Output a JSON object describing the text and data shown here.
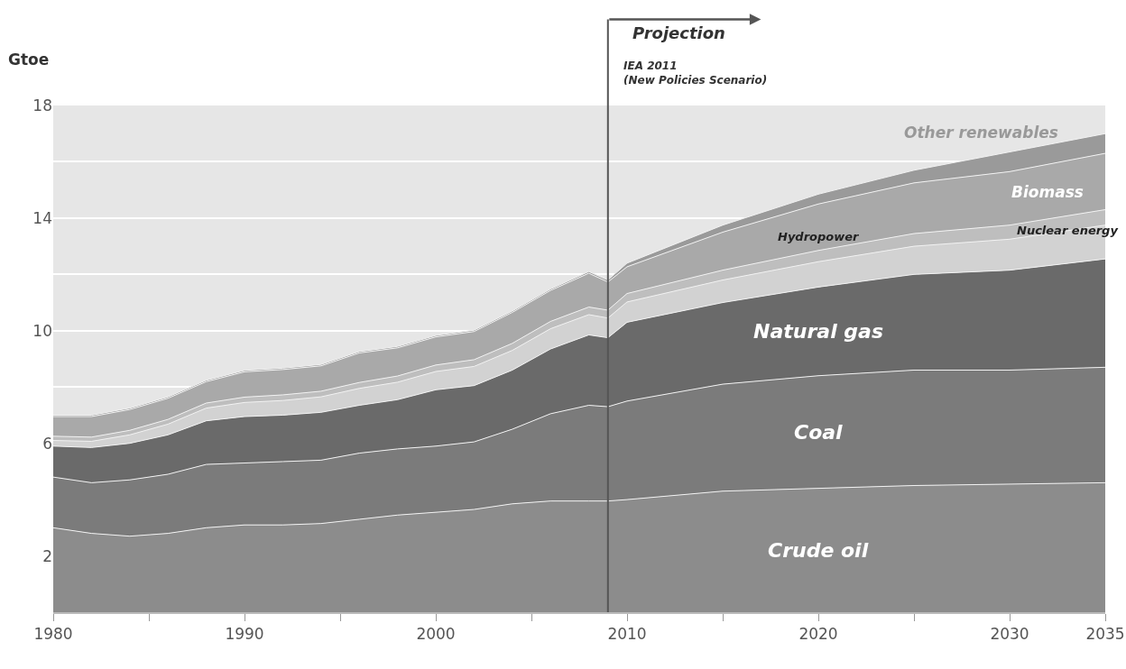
{
  "chart_data": {
    "type": "area",
    "stacked": true,
    "ylabel": "Gtoe",
    "x": [
      1980,
      1982,
      1984,
      1986,
      1988,
      1990,
      1992,
      1994,
      1996,
      1998,
      2000,
      2002,
      2004,
      2006,
      2008,
      2009,
      2010,
      2015,
      2020,
      2025,
      2030,
      2035
    ],
    "series": [
      {
        "name": "Crude oil",
        "color": "#8c8c8c",
        "values": [
          3.0,
          2.8,
          2.7,
          2.8,
          3.0,
          3.1,
          3.1,
          3.15,
          3.3,
          3.45,
          3.55,
          3.65,
          3.85,
          3.95,
          3.95,
          3.95,
          4.0,
          4.3,
          4.4,
          4.5,
          4.55,
          4.6
        ]
      },
      {
        "name": "Coal",
        "color": "#7b7b7b",
        "values": [
          1.8,
          1.8,
          2.0,
          2.1,
          2.25,
          2.2,
          2.25,
          2.25,
          2.35,
          2.35,
          2.35,
          2.4,
          2.65,
          3.1,
          3.4,
          3.35,
          3.5,
          3.8,
          4.0,
          4.1,
          4.05,
          4.1
        ]
      },
      {
        "name": "Natural gas",
        "color": "#6a6a6a",
        "values": [
          1.1,
          1.25,
          1.3,
          1.4,
          1.55,
          1.65,
          1.65,
          1.7,
          1.7,
          1.75,
          2.0,
          2.0,
          2.1,
          2.3,
          2.5,
          2.45,
          2.8,
          2.9,
          3.15,
          3.4,
          3.55,
          3.85
        ]
      },
      {
        "name": "Nuclear energy",
        "color": "#d2d2d2",
        "values": [
          0.2,
          0.22,
          0.3,
          0.38,
          0.45,
          0.5,
          0.52,
          0.55,
          0.6,
          0.62,
          0.65,
          0.68,
          0.7,
          0.72,
          0.72,
          0.7,
          0.72,
          0.8,
          0.9,
          1.0,
          1.1,
          1.2
        ]
      },
      {
        "name": "Hydropower",
        "color": "#bebebe",
        "values": [
          0.15,
          0.15,
          0.16,
          0.17,
          0.18,
          0.19,
          0.2,
          0.2,
          0.21,
          0.22,
          0.23,
          0.24,
          0.25,
          0.26,
          0.27,
          0.28,
          0.3,
          0.35,
          0.4,
          0.45,
          0.5,
          0.55
        ]
      },
      {
        "name": "Biomass",
        "color": "#a9a9a9",
        "values": [
          0.7,
          0.73,
          0.74,
          0.75,
          0.76,
          0.9,
          0.9,
          0.9,
          1.05,
          1.0,
          1.0,
          1.0,
          1.1,
          1.1,
          1.2,
          1.0,
          0.95,
          1.35,
          1.65,
          1.8,
          1.9,
          2.0
        ]
      },
      {
        "name": "Other renewables",
        "color": "#9a9a9a",
        "values": [
          0.05,
          0.05,
          0.05,
          0.05,
          0.05,
          0.05,
          0.05,
          0.05,
          0.05,
          0.05,
          0.05,
          0.05,
          0.05,
          0.05,
          0.06,
          0.07,
          0.13,
          0.25,
          0.35,
          0.45,
          0.7,
          0.7
        ]
      }
    ],
    "xlim": [
      1980,
      2035
    ],
    "xticks": [
      1980,
      {
        "value": 1985,
        "label": null
      },
      1990,
      {
        "value": 1995,
        "label": null
      },
      2000,
      {
        "value": 2005,
        "label": null
      },
      2010,
      {
        "value": 2015,
        "label": null
      },
      2020,
      {
        "value": 2025,
        "label": null
      },
      2030,
      2035
    ],
    "ylim": [
      0,
      18
    ],
    "yticks": [
      2,
      6,
      {
        "value": 8,
        "label": null
      },
      10,
      {
        "value": 12,
        "label": null
      },
      14,
      {
        "value": 16,
        "label": null
      },
      18
    ],
    "grid": "y",
    "legend": false,
    "ref_lines": [
      {
        "axis": "x",
        "value": 2009,
        "label": "Projection",
        "color": "#555555"
      }
    ],
    "annotations": [
      "IEA 2011 (New Policies Scenario)"
    ]
  }
}
